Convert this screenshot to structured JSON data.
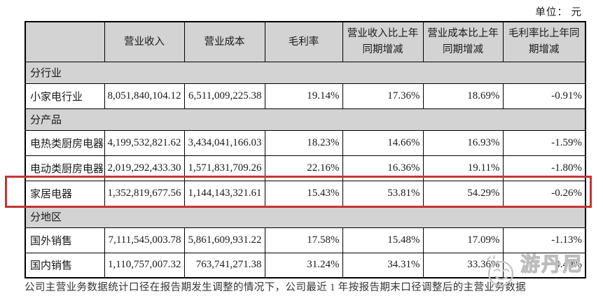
{
  "unit_label": "单位： 元",
  "table": {
    "columns": [
      "",
      "营业收入",
      "营业成本",
      "毛利率",
      "营业收入比上年同期增减",
      "营业成本比上年同期增减",
      "毛利率比上年同期增减"
    ],
    "rows": [
      {
        "type": "section",
        "label": "分行业"
      },
      {
        "type": "data",
        "label": "小家电行业",
        "revenue": "8,051,840,104.12",
        "cost": "6,511,009,225.38",
        "margin": "19.14%",
        "revenue_yoy": "17.36%",
        "cost_yoy": "18.69%",
        "margin_yoy": "-0.91%"
      },
      {
        "type": "section",
        "label": "分产品"
      },
      {
        "type": "data",
        "label": "电热类厨房电器",
        "revenue": "4,199,532,821.62",
        "cost": "3,434,041,166.03",
        "margin": "18.23%",
        "revenue_yoy": "14.66%",
        "cost_yoy": "16.93%",
        "margin_yoy": "-1.59%"
      },
      {
        "type": "data",
        "label": "电动类厨房电器",
        "revenue": "2,019,292,433.30",
        "cost": "1,571,831,709.26",
        "margin": "22.16%",
        "revenue_yoy": "16.36%",
        "cost_yoy": "19.11%",
        "margin_yoy": "-1.80%"
      },
      {
        "type": "data",
        "label": "家居电器",
        "highlighted": true,
        "revenue": "1,352,819,677.56",
        "cost": "1,144,143,321.61",
        "margin": "15.43%",
        "revenue_yoy": "53.81%",
        "cost_yoy": "54.29%",
        "margin_yoy": "-0.26%"
      },
      {
        "type": "section",
        "label": "分地区"
      },
      {
        "type": "data",
        "label": "国外销售",
        "revenue": "7,111,545,003.78",
        "cost": "5,861,609,931.22",
        "margin": "17.58%",
        "revenue_yoy": "15.48%",
        "cost_yoy": "17.09%",
        "margin_yoy": "-1.13%"
      },
      {
        "type": "data",
        "label": "国内销售",
        "revenue": "1,110,757,007.32",
        "cost": "763,741,271.38",
        "margin": "31.24%",
        "revenue_yoy": "34.31%",
        "cost_yoy": "33.36%",
        "margin_yoy": "0.49%"
      }
    ]
  },
  "footnote": "公司主营业务数据统计口径在报告期发生调整的情况下，公司最近 1 年按报告期末口径调整后的主营业务数据",
  "watermark": {
    "text": "游丹尼",
    "icon": "smiley-face-icon"
  },
  "colors": {
    "highlight_border": "#c63434",
    "header_bg": "#d3d3d3",
    "table_border": "#000000",
    "watermark_gray": "#bdbdbd"
  }
}
